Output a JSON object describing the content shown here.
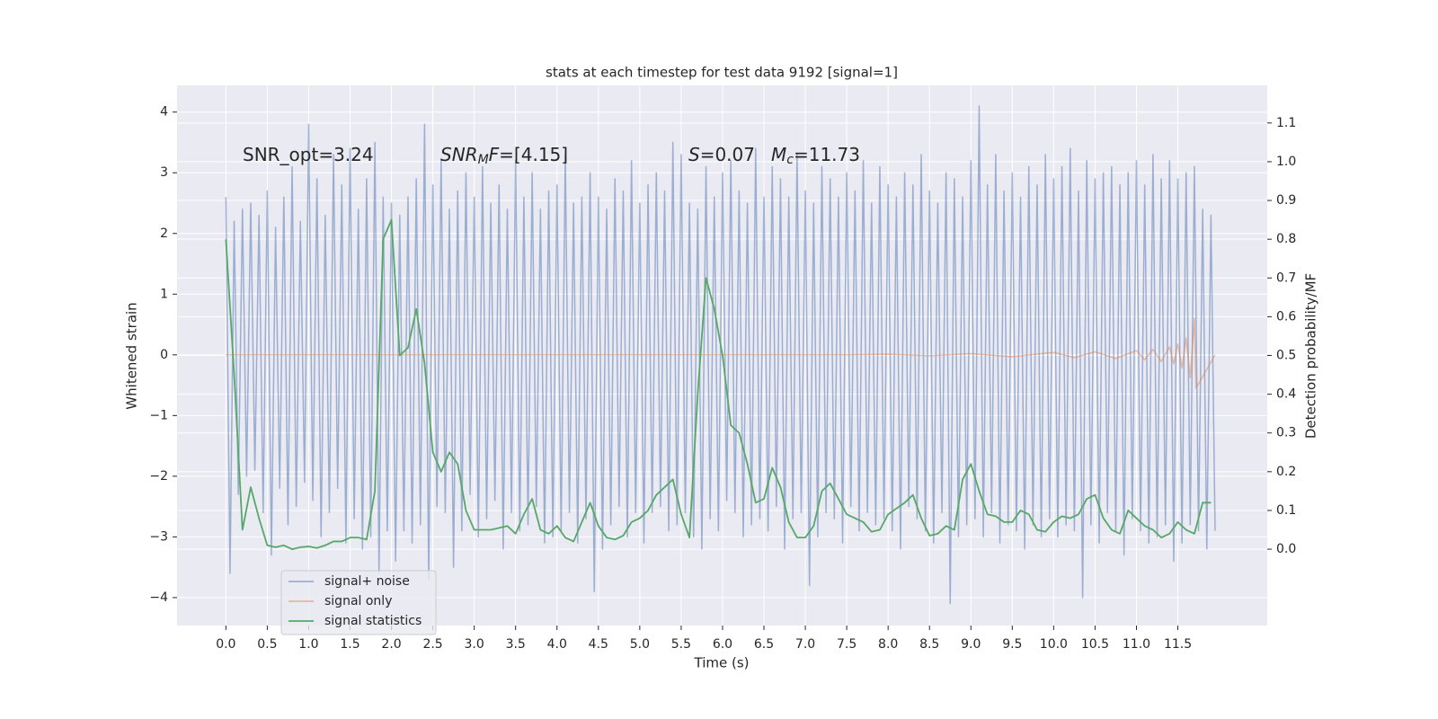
{
  "chart_data": {
    "type": "line",
    "title": "stats at each timestep for test data 9192 [signal=1]",
    "xlabel": "Time (s)",
    "ylabel": "Whitened strain",
    "y2label": "Detection probability/MF",
    "xlim": [
      -0.59,
      12.58
    ],
    "ylim": [
      -4.46,
      4.44
    ],
    "y2lim": [
      -0.197,
      1.197
    ],
    "xticks": [
      {
        "value": 0,
        "label": "0.0"
      },
      0.5,
      {
        "value": 1,
        "label": "1.0"
      },
      1.5,
      {
        "value": 2,
        "label": "2.0"
      },
      2.5,
      {
        "value": 3,
        "label": "3.0"
      },
      3.5,
      {
        "value": 4,
        "label": "4.0"
      },
      4.5,
      {
        "value": 5,
        "label": "5.0"
      },
      5.5,
      {
        "value": 6,
        "label": "6.0"
      },
      6.5,
      {
        "value": 7,
        "label": "7.0"
      },
      7.5,
      {
        "value": 8,
        "label": "8.0"
      },
      8.5,
      {
        "value": 9,
        "label": "9.0"
      },
      9.5,
      {
        "value": 10,
        "label": "10.0"
      },
      10.5,
      {
        "value": 11,
        "label": "11.0"
      },
      11.5
    ],
    "yticks": [
      {
        "value": -4,
        "label": "−4"
      },
      {
        "value": -3,
        "label": "−3"
      },
      {
        "value": -2,
        "label": "−2"
      },
      {
        "value": -1,
        "label": "−1"
      },
      0,
      1,
      2,
      3,
      4
    ],
    "y2ticks": [
      {
        "value": 0,
        "label": "0.0"
      },
      0.1,
      0.2,
      0.3,
      0.4,
      0.5,
      0.6,
      0.7,
      0.8,
      0.9,
      {
        "value": 1,
        "label": "1.0"
      },
      1.1
    ],
    "grid": true,
    "legend_loc": "lower left",
    "annotations": [
      {
        "parts": [
          {
            "text": "SNR_opt=3.24",
            "style": "normal"
          }
        ]
      },
      {
        "parts": [
          {
            "text": "SNR",
            "style": "italic"
          },
          {
            "text": "M",
            "style": "italic-sub"
          },
          {
            "text": "F",
            "style": "italic"
          },
          {
            "text": "=[4.15]",
            "style": "normal"
          }
        ]
      },
      {
        "parts": [
          {
            "text": "S",
            "style": "italic"
          },
          {
            "text": "=0.07",
            "style": "normal"
          }
        ]
      },
      {
        "parts": [
          {
            "text": "M",
            "style": "italic"
          },
          {
            "text": "c",
            "style": "italic-sub"
          },
          {
            "text": "=11.73",
            "style": "normal"
          }
        ]
      }
    ],
    "series": [
      {
        "name": "signal+ noise",
        "color": "#4c72b0",
        "alpha": 0.5,
        "axis": "y",
        "x": [
          0,
          0.05,
          0.1,
          0.15,
          0.2,
          0.25,
          0.3,
          0.35,
          0.4,
          0.45,
          0.5,
          0.55,
          0.6,
          0.65,
          0.7,
          0.75,
          0.8,
          0.85,
          0.9,
          0.95,
          1,
          1.05,
          1.1,
          1.15,
          1.2,
          1.25,
          1.3,
          1.35,
          1.4,
          1.45,
          1.5,
          1.55,
          1.6,
          1.65,
          1.7,
          1.75,
          1.8,
          1.85,
          1.9,
          1.95,
          2,
          2.05,
          2.1,
          2.15,
          2.2,
          2.25,
          2.3,
          2.35,
          2.4,
          2.45,
          2.5,
          2.55,
          2.6,
          2.65,
          2.7,
          2.75,
          2.8,
          2.85,
          2.9,
          2.95,
          3,
          3.05,
          3.1,
          3.15,
          3.2,
          3.25,
          3.3,
          3.35,
          3.4,
          3.45,
          3.5,
          3.55,
          3.6,
          3.65,
          3.7,
          3.75,
          3.8,
          3.85,
          3.9,
          3.95,
          4,
          4.05,
          4.1,
          4.15,
          4.2,
          4.25,
          4.3,
          4.35,
          4.4,
          4.45,
          4.5,
          4.55,
          4.6,
          4.65,
          4.7,
          4.75,
          4.8,
          4.85,
          4.9,
          4.95,
          5,
          5.05,
          5.1,
          5.15,
          5.2,
          5.25,
          5.3,
          5.35,
          5.4,
          5.45,
          5.5,
          5.55,
          5.6,
          5.65,
          5.7,
          5.75,
          5.8,
          5.85,
          5.9,
          5.95,
          6,
          6.05,
          6.1,
          6.15,
          6.2,
          6.25,
          6.3,
          6.35,
          6.4,
          6.45,
          6.5,
          6.55,
          6.6,
          6.65,
          6.7,
          6.75,
          6.8,
          6.85,
          6.9,
          6.95,
          7,
          7.05,
          7.1,
          7.15,
          7.2,
          7.25,
          7.3,
          7.35,
          7.4,
          7.45,
          7.5,
          7.55,
          7.6,
          7.65,
          7.7,
          7.75,
          7.8,
          7.85,
          7.9,
          7.95,
          8,
          8.05,
          8.1,
          8.15,
          8.2,
          8.25,
          8.3,
          8.35,
          8.4,
          8.45,
          8.5,
          8.55,
          8.6,
          8.65,
          8.7,
          8.75,
          8.8,
          8.85,
          8.9,
          8.95,
          9,
          9.05,
          9.1,
          9.15,
          9.2,
          9.25,
          9.3,
          9.35,
          9.4,
          9.45,
          9.5,
          9.55,
          9.6,
          9.65,
          9.7,
          9.75,
          9.8,
          9.85,
          9.9,
          9.95,
          10,
          10.05,
          10.1,
          10.15,
          10.2,
          10.25,
          10.3,
          10.35,
          10.4,
          10.45,
          10.5,
          10.55,
          10.6,
          10.65,
          10.7,
          10.75,
          10.8,
          10.85,
          10.9,
          10.95,
          11,
          11.05,
          11.1,
          11.15,
          11.2,
          11.25,
          11.3,
          11.35,
          11.4,
          11.45,
          11.5,
          11.55,
          11.6,
          11.65,
          11.7,
          11.75,
          11.8,
          11.85,
          11.9,
          11.95
        ],
        "values": [
          2.6,
          -3.6,
          2.2,
          -2.3,
          2.4,
          -2.0,
          2.5,
          -1.9,
          2.3,
          -2.6,
          2.7,
          -3.3,
          2.1,
          -2.2,
          2.6,
          -2.8,
          3.1,
          -2.5,
          2.2,
          -2.1,
          3.8,
          -2.4,
          2.9,
          -3.0,
          2.3,
          -2.6,
          3.3,
          -2.2,
          2.8,
          -3.1,
          3.4,
          -2.7,
          2.4,
          -3.2,
          2.9,
          -3.0,
          3.5,
          -3.6,
          2.6,
          -2.9,
          2.5,
          -3.4,
          2.3,
          -2.9,
          2.6,
          -3.1,
          2.9,
          -2.8,
          3.8,
          -3.7,
          2.8,
          -2.5,
          3.2,
          -2.6,
          2.4,
          -3.5,
          2.7,
          -2.9,
          3.0,
          -2.3,
          2.6,
          -3.0,
          3.1,
          -2.7,
          2.5,
          -2.4,
          2.8,
          -3.2,
          2.4,
          -2.6,
          3.2,
          -2.9,
          2.6,
          -2.8,
          3.0,
          -2.5,
          2.4,
          -3.1,
          2.7,
          -3.0,
          2.8,
          -2.9,
          3.3,
          -2.6,
          2.5,
          -3.1,
          2.6,
          -2.7,
          3.0,
          -3.9,
          2.6,
          -3.2,
          2.4,
          -2.8,
          2.9,
          -2.5,
          2.7,
          -3.0,
          3.2,
          -2.6,
          2.5,
          -3.1,
          2.8,
          -2.6,
          3.0,
          -2.5,
          2.7,
          -2.9,
          3.5,
          -2.8,
          3.3,
          -2.6,
          2.5,
          -3.0,
          2.4,
          -3.2,
          3.1,
          -2.7,
          2.6,
          -2.9,
          3.0,
          -2.4,
          3.2,
          -2.6,
          2.7,
          -3.0,
          2.5,
          -2.8,
          3.4,
          -2.7,
          2.6,
          -2.9,
          3.1,
          -2.5,
          2.9,
          -3.2,
          2.6,
          -2.7,
          3.3,
          -2.6,
          2.7,
          -3.8,
          2.5,
          -3.0,
          3.1,
          -2.6,
          2.9,
          -2.7,
          2.6,
          -3.1,
          3.0,
          -2.5,
          2.7,
          -2.9,
          3.2,
          -2.6,
          2.5,
          -2.8,
          3.1,
          -2.7,
          2.8,
          -2.9,
          2.6,
          -3.2,
          3.0,
          -2.5,
          2.8,
          -2.7,
          3.3,
          -2.9,
          2.7,
          -3.1,
          2.5,
          -2.6,
          3.0,
          -4.1,
          2.9,
          -3.0,
          2.6,
          -2.8,
          3.2,
          -2.7,
          4.1,
          -3.0,
          2.8,
          -2.6,
          3.3,
          -3.1,
          2.7,
          -2.8,
          3.0,
          -2.9,
          2.6,
          -3.2,
          3.1,
          -2.8,
          2.8,
          -3.0,
          3.3,
          -2.7,
          2.9,
          -3.0,
          3.1,
          -2.8,
          3.4,
          -2.9,
          2.7,
          -4.0,
          3.2,
          -2.8,
          2.9,
          -3.1,
          3.0,
          -2.6,
          3.1,
          -2.9,
          2.8,
          -3.3,
          3.0,
          -2.7,
          3.2,
          -2.9,
          2.8,
          -3.1,
          3.3,
          -3.0,
          2.9,
          -2.8,
          3.2,
          -3.4,
          2.9,
          -3.1,
          3.0,
          -2.8,
          3.1,
          -2.9,
          2.4,
          -3.2,
          2.3,
          -2.9
        ]
      },
      {
        "name": "signal only",
        "color": "#dd8452",
        "alpha": 0.5,
        "axis": "y",
        "x": [
          0,
          7.5,
          8,
          8.5,
          9,
          9.5,
          10,
          10.25,
          10.5,
          10.75,
          11,
          11.1,
          11.2,
          11.3,
          11.4,
          11.45,
          11.5,
          11.55,
          11.6,
          11.65,
          11.7,
          11.72,
          11.95
        ],
        "values": [
          0,
          0,
          0.01,
          -0.015,
          0.02,
          -0.03,
          0.04,
          -0.045,
          0.05,
          -0.06,
          0.07,
          -0.08,
          0.09,
          -0.11,
          0.13,
          -0.15,
          0.18,
          -0.22,
          0.28,
          -0.38,
          0.6,
          -0.55,
          0
        ]
      },
      {
        "name": "signal statistics",
        "color": "#55a868",
        "alpha": 1,
        "axis": "y2",
        "x": [
          0,
          0.1,
          0.2,
          0.3,
          0.4,
          0.5,
          0.6,
          0.7,
          0.8,
          0.9,
          1,
          1.1,
          1.2,
          1.3,
          1.4,
          1.5,
          1.6,
          1.7,
          1.8,
          1.9,
          2,
          2.1,
          2.2,
          2.3,
          2.4,
          2.5,
          2.6,
          2.7,
          2.8,
          2.9,
          3,
          3.1,
          3.2,
          3.3,
          3.4,
          3.5,
          3.6,
          3.7,
          3.8,
          3.9,
          4,
          4.1,
          4.2,
          4.3,
          4.4,
          4.5,
          4.6,
          4.7,
          4.8,
          4.9,
          5,
          5.1,
          5.2,
          5.3,
          5.4,
          5.5,
          5.6,
          5.7,
          5.8,
          5.9,
          6,
          6.1,
          6.2,
          6.3,
          6.4,
          6.5,
          6.6,
          6.7,
          6.8,
          6.9,
          7,
          7.1,
          7.2,
          7.3,
          7.4,
          7.5,
          7.6,
          7.7,
          7.8,
          7.9,
          8,
          8.1,
          8.2,
          8.3,
          8.4,
          8.5,
          8.6,
          8.7,
          8.8,
          8.9,
          9,
          9.1,
          9.2,
          9.3,
          9.4,
          9.5,
          9.6,
          9.7,
          9.8,
          9.9,
          10,
          10.1,
          10.2,
          10.3,
          10.4,
          10.5,
          10.6,
          10.7,
          10.8,
          10.9,
          11,
          11.1,
          11.2,
          11.3,
          11.4,
          11.5,
          11.6,
          11.7,
          11.8,
          11.9
        ],
        "values": [
          0.8,
          0.45,
          0.05,
          0.16,
          0.08,
          0.01,
          0.005,
          0.01,
          0,
          0.005,
          0.007,
          0.003,
          0.01,
          0.02,
          0.02,
          0.03,
          0.03,
          0.025,
          0.15,
          0.8,
          0.85,
          0.5,
          0.52,
          0.62,
          0.48,
          0.25,
          0.2,
          0.25,
          0.22,
          0.1,
          0.05,
          0.05,
          0.05,
          0.055,
          0.06,
          0.04,
          0.09,
          0.13,
          0.05,
          0.04,
          0.06,
          0.03,
          0.02,
          0.07,
          0.12,
          0.06,
          0.03,
          0.025,
          0.035,
          0.07,
          0.08,
          0.1,
          0.14,
          0.16,
          0.18,
          0.09,
          0.03,
          0.4,
          0.7,
          0.62,
          0.5,
          0.32,
          0.3,
          0.22,
          0.12,
          0.13,
          0.21,
          0.16,
          0.07,
          0.03,
          0.03,
          0.06,
          0.15,
          0.17,
          0.13,
          0.09,
          0.08,
          0.07,
          0.045,
          0.05,
          0.09,
          0.105,
          0.12,
          0.14,
          0.08,
          0.035,
          0.04,
          0.06,
          0.05,
          0.18,
          0.22,
          0.15,
          0.09,
          0.085,
          0.07,
          0.07,
          0.1,
          0.09,
          0.05,
          0.045,
          0.07,
          0.085,
          0.08,
          0.09,
          0.13,
          0.14,
          0.08,
          0.05,
          0.04,
          0.1,
          0.08,
          0.06,
          0.05,
          0.03,
          0.04,
          0.07,
          0.05,
          0.04,
          0.12,
          0.12
        ]
      }
    ]
  }
}
